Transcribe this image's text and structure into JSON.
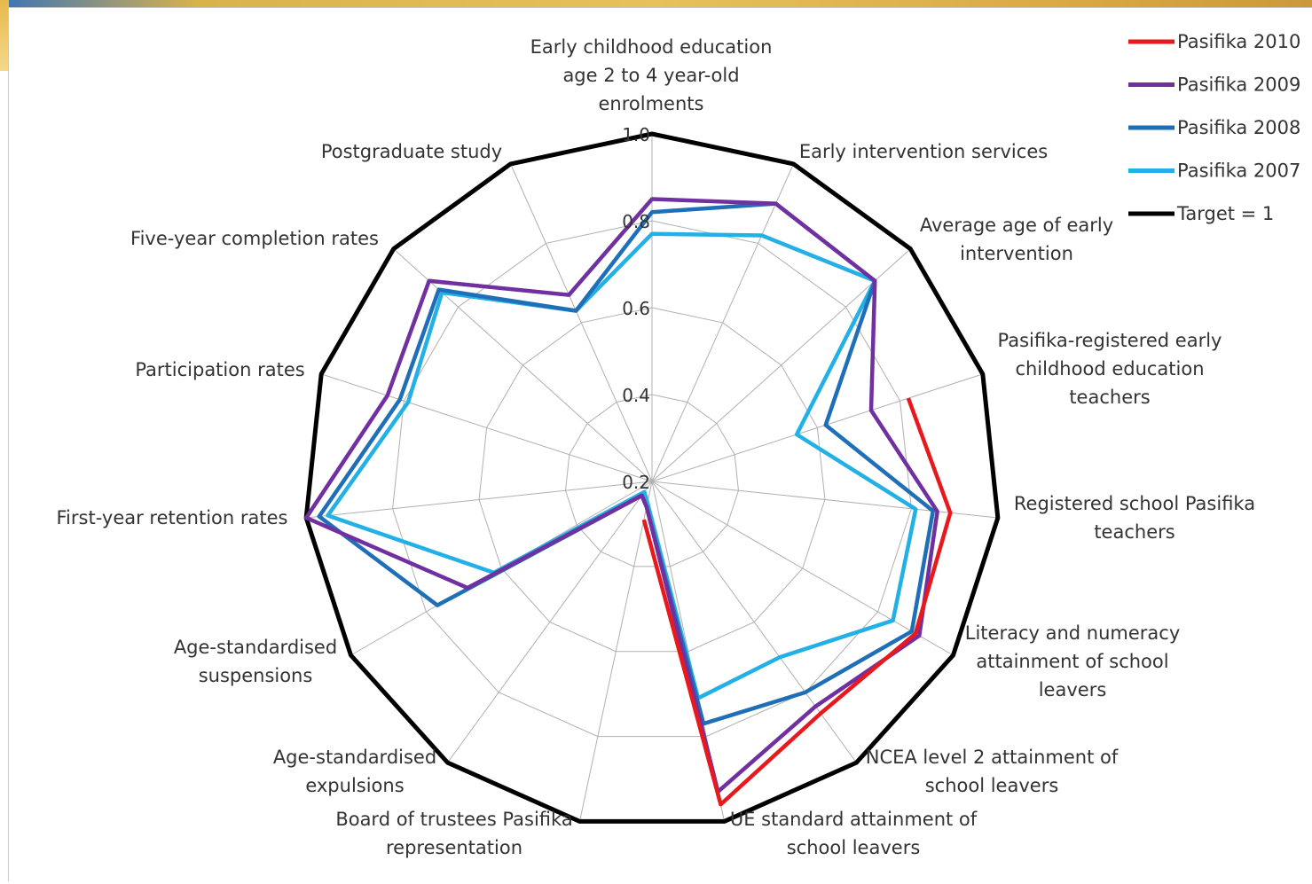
{
  "chart_data": {
    "type": "radar",
    "categories": [
      [
        "Early childhood education",
        "age 2 to 4 year-old",
        "enrolments"
      ],
      [
        "Early intervention services"
      ],
      [
        "Average age of early",
        "intervention"
      ],
      [
        "Pasifika-registered early",
        "childhood education",
        "teachers"
      ],
      [
        "Registered school Pasifika",
        "teachers"
      ],
      [
        "Literacy and numeracy",
        "attainment  of school",
        "leavers"
      ],
      [
        "NCEA level 2 attainment  of",
        "school leavers"
      ],
      [
        "UE standard attainment  of",
        "school leavers"
      ],
      [
        "Board of trustees Pasifika",
        "representation"
      ],
      [
        "Age-standardised",
        "expulsions"
      ],
      [
        "Age-standardised",
        "suspensions"
      ],
      [
        "First-year retention rates"
      ],
      [
        "Participation rates"
      ],
      [
        "Five-year completion rates"
      ],
      [
        "Postgraduate study"
      ]
    ],
    "tick_labels": [
      "0.2",
      "0.4",
      "0.6",
      "0.8",
      "1.0"
    ],
    "rlim": [
      0.2,
      1.0
    ],
    "grid": true,
    "legend_position": "top-right",
    "series": [
      {
        "name": "Pasifika 2010",
        "color": "#e8191c",
        "values": [
          null,
          null,
          null,
          0.82,
          0.89,
          0.9,
          0.86,
          0.96,
          0.29,
          null,
          null,
          null,
          null,
          null,
          null
        ]
      },
      {
        "name": "Pasifika 2009",
        "color": "#7030a0",
        "values": [
          0.85,
          0.9,
          0.89,
          0.73,
          0.86,
          0.91,
          0.84,
          0.93,
          0.26,
          0.24,
          0.69,
          1.0,
          0.84,
          0.89,
          0.67
        ]
      },
      {
        "name": "Pasifika 2008",
        "color": "#1f6fb8",
        "values": [
          0.82,
          0.9,
          0.89,
          0.62,
          0.85,
          0.89,
          0.8,
          0.77,
          0.26,
          0.24,
          0.77,
          0.97,
          0.81,
          0.86,
          0.63
        ]
      },
      {
        "name": "Pasifika 2007",
        "color": "#22b0e6",
        "values": [
          0.77,
          0.82,
          0.89,
          0.55,
          0.81,
          0.84,
          0.7,
          0.71,
          0.25,
          0.23,
          0.62,
          0.95,
          0.79,
          0.85,
          0.63
        ]
      },
      {
        "name": "Target = 1",
        "color": "#000000",
        "values": [
          1,
          1,
          1,
          1,
          1,
          1,
          1,
          1,
          1,
          1,
          1,
          1,
          1,
          1,
          1
        ]
      }
    ]
  }
}
